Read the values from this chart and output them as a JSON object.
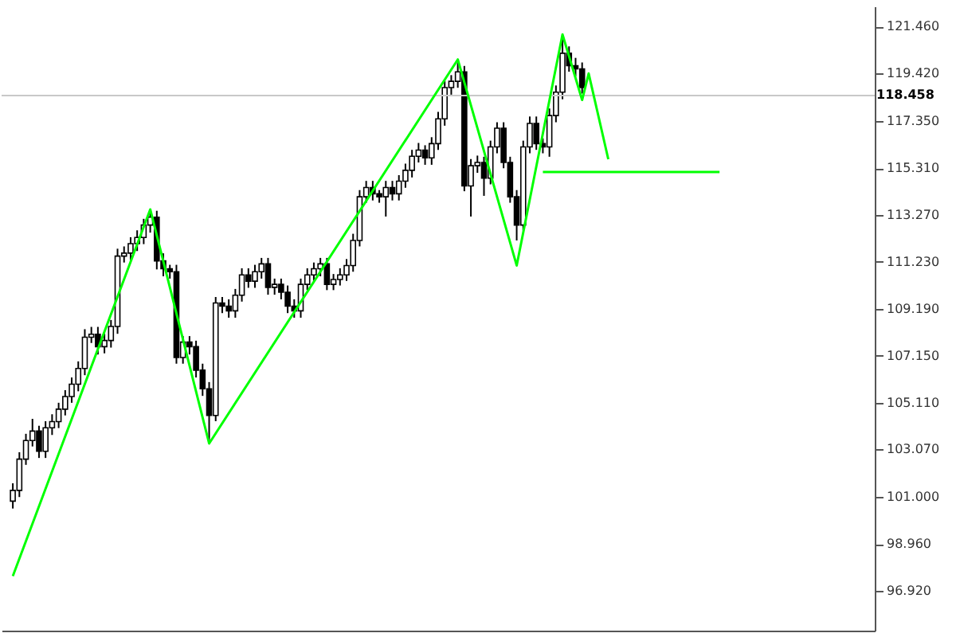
{
  "chart_data": {
    "type": "candlestick",
    "categories": [
      null,
      null,
      null,
      null,
      null,
      null,
      null,
      null,
      null,
      null,
      null,
      null,
      null,
      null,
      null,
      null,
      null,
      null,
      null,
      null,
      null,
      null,
      null,
      null,
      null,
      null,
      null,
      null,
      null,
      null,
      null,
      null,
      null,
      null,
      null,
      null,
      null,
      null,
      null,
      null,
      null,
      null,
      null,
      null,
      null,
      null,
      null,
      null,
      null,
      null,
      null,
      null,
      null,
      null,
      null,
      null,
      null,
      null,
      null,
      null,
      null,
      null,
      null,
      null,
      null,
      null,
      null,
      null,
      null,
      null,
      null,
      null,
      null,
      null,
      null,
      null,
      null,
      null,
      null,
      null,
      null,
      null,
      null,
      null,
      null,
      null,
      null,
      null,
      null,
      null,
      null,
      null,
      null,
      null,
      null,
      null,
      null,
      null,
      null,
      null,
      null,
      null,
      null,
      null,
      null,
      null,
      null,
      null,
      null,
      null,
      null,
      null,
      null,
      null,
      null,
      null,
      null,
      null,
      null,
      null,
      null,
      null,
      null,
      null,
      null,
      null,
      null,
      null,
      null,
      null,
      null
    ],
    "ohlc": [
      [
        100.82,
        101.6,
        100.5,
        101.29
      ],
      [
        101.29,
        102.95,
        101.0,
        102.65
      ],
      [
        102.65,
        103.75,
        102.4,
        103.46
      ],
      [
        103.46,
        104.4,
        103.2,
        103.87
      ],
      [
        103.87,
        104.1,
        102.7,
        102.99
      ],
      [
        102.99,
        104.3,
        102.7,
        104.01
      ],
      [
        104.01,
        104.6,
        103.7,
        104.28
      ],
      [
        104.28,
        105.1,
        104.0,
        104.82
      ],
      [
        104.82,
        105.65,
        104.55,
        105.37
      ],
      [
        105.37,
        106.2,
        105.1,
        105.91
      ],
      [
        105.91,
        106.9,
        105.6,
        106.59
      ],
      [
        106.59,
        108.3,
        106.3,
        107.95
      ],
      [
        107.95,
        108.4,
        107.7,
        108.08
      ],
      [
        108.08,
        108.4,
        107.2,
        107.54
      ],
      [
        107.54,
        108.1,
        107.25,
        107.81
      ],
      [
        107.81,
        108.7,
        107.5,
        108.42
      ],
      [
        108.42,
        111.8,
        108.1,
        111.48
      ],
      [
        111.48,
        111.9,
        111.2,
        111.61
      ],
      [
        111.61,
        112.3,
        111.3,
        112.02
      ],
      [
        112.02,
        112.6,
        111.7,
        112.29
      ],
      [
        112.29,
        113.1,
        112.0,
        112.83
      ],
      [
        112.83,
        113.45,
        112.5,
        113.17
      ],
      [
        113.17,
        113.45,
        110.9,
        111.27
      ],
      [
        111.27,
        111.6,
        110.6,
        110.93
      ],
      [
        110.93,
        111.1,
        110.5,
        110.8
      ],
      [
        110.8,
        111.1,
        106.8,
        107.07
      ],
      [
        107.07,
        108.0,
        106.8,
        107.74
      ],
      [
        107.74,
        108.0,
        107.2,
        107.54
      ],
      [
        107.54,
        107.8,
        106.2,
        106.52
      ],
      [
        106.52,
        106.8,
        105.4,
        105.71
      ],
      [
        105.71,
        106.0,
        103.46,
        104.55
      ],
      [
        104.55,
        109.7,
        104.3,
        109.44
      ],
      [
        109.44,
        109.7,
        109.0,
        109.3
      ],
      [
        109.3,
        109.6,
        108.8,
        109.1
      ],
      [
        109.1,
        110.05,
        108.8,
        109.78
      ],
      [
        109.78,
        110.95,
        109.5,
        110.66
      ],
      [
        110.66,
        110.95,
        110.1,
        110.39
      ],
      [
        110.39,
        111.1,
        110.1,
        110.8
      ],
      [
        110.8,
        111.4,
        110.5,
        111.14
      ],
      [
        111.14,
        111.4,
        109.8,
        110.12
      ],
      [
        110.12,
        110.5,
        109.8,
        110.25
      ],
      [
        110.25,
        110.5,
        109.6,
        109.91
      ],
      [
        109.91,
        110.2,
        109.0,
        109.3
      ],
      [
        109.3,
        109.6,
        108.8,
        109.1
      ],
      [
        109.1,
        110.5,
        108.8,
        110.25
      ],
      [
        110.25,
        110.95,
        110.0,
        110.66
      ],
      [
        110.66,
        111.2,
        110.4,
        110.93
      ],
      [
        110.93,
        111.4,
        110.6,
        111.14
      ],
      [
        111.14,
        111.4,
        110.0,
        110.25
      ],
      [
        110.25,
        110.7,
        110.0,
        110.46
      ],
      [
        110.46,
        110.95,
        110.2,
        110.66
      ],
      [
        110.66,
        111.35,
        110.4,
        111.07
      ],
      [
        111.07,
        112.45,
        110.8,
        112.16
      ],
      [
        112.16,
        114.35,
        111.9,
        114.06
      ],
      [
        114.06,
        114.75,
        113.8,
        114.46
      ],
      [
        114.46,
        114.75,
        113.9,
        114.19
      ],
      [
        114.19,
        114.35,
        113.8,
        114.06
      ],
      [
        114.06,
        114.75,
        113.2,
        114.46
      ],
      [
        114.46,
        114.75,
        113.9,
        114.19
      ],
      [
        114.19,
        115.0,
        113.9,
        114.74
      ],
      [
        114.74,
        115.5,
        114.45,
        115.21
      ],
      [
        115.21,
        116.1,
        114.9,
        115.82
      ],
      [
        115.82,
        116.4,
        115.55,
        116.09
      ],
      [
        116.09,
        116.3,
        115.45,
        115.75
      ],
      [
        115.75,
        116.65,
        115.45,
        116.37
      ],
      [
        116.37,
        117.75,
        116.1,
        117.45
      ],
      [
        117.45,
        119.1,
        117.15,
        118.81
      ],
      [
        118.81,
        119.35,
        118.5,
        119.08
      ],
      [
        119.08,
        119.9,
        118.8,
        119.49
      ],
      [
        119.49,
        119.75,
        114.3,
        114.53
      ],
      [
        114.53,
        115.7,
        113.2,
        115.41
      ],
      [
        115.41,
        115.85,
        115.1,
        115.55
      ],
      [
        115.55,
        115.8,
        114.1,
        114.87
      ],
      [
        114.87,
        116.5,
        114.6,
        116.23
      ],
      [
        116.23,
        117.3,
        115.95,
        117.04
      ],
      [
        117.04,
        117.3,
        115.3,
        115.55
      ],
      [
        115.55,
        115.8,
        113.8,
        114.06
      ],
      [
        114.06,
        114.35,
        112.16,
        112.83
      ],
      [
        112.83,
        116.5,
        112.6,
        116.23
      ],
      [
        116.23,
        117.55,
        115.95,
        117.25
      ],
      [
        117.25,
        117.55,
        116.1,
        116.37
      ],
      [
        116.37,
        116.6,
        115.95,
        116.23
      ],
      [
        116.23,
        117.9,
        115.8,
        117.59
      ],
      [
        117.59,
        118.9,
        117.3,
        118.61
      ],
      [
        118.61,
        120.98,
        118.3,
        120.3
      ],
      [
        120.3,
        120.6,
        119.5,
        119.76
      ],
      [
        119.76,
        120.1,
        119.3,
        119.62
      ],
      [
        119.62,
        119.9,
        118.55,
        118.81
      ],
      null,
      null,
      null,
      null,
      null,
      null,
      null,
      null,
      null,
      null,
      null,
      null,
      null,
      null,
      null,
      null,
      null,
      null,
      null,
      null,
      null,
      null,
      null,
      null,
      null,
      null,
      null,
      null,
      null,
      null,
      null,
      null,
      null,
      null,
      null,
      null,
      null,
      null,
      null,
      null,
      null,
      null,
      null
    ],
    "series": [
      {
        "type": "line",
        "color": "#00ff00",
        "values": [
          97.56,
          null,
          null,
          null,
          null,
          null,
          null,
          null,
          null,
          null,
          null,
          null,
          null,
          null,
          null,
          null,
          null,
          null,
          null,
          null,
          null,
          113.51,
          null,
          null,
          null,
          null,
          null,
          null,
          null,
          null,
          103.33,
          null,
          null,
          null,
          null,
          null,
          null,
          null,
          null,
          null,
          null,
          null,
          null,
          null,
          null,
          null,
          null,
          null,
          null,
          null,
          null,
          null,
          null,
          null,
          null,
          null,
          null,
          null,
          null,
          null,
          null,
          null,
          null,
          null,
          null,
          null,
          null,
          null,
          120.03,
          null,
          null,
          null,
          null,
          null,
          null,
          null,
          null,
          111.07,
          null,
          null,
          null,
          null,
          null,
          null,
          121.12,
          null,
          null,
          118.27,
          119.42,
          null,
          null,
          115.69,
          null,
          null,
          null,
          null,
          null,
          null,
          null,
          null,
          null,
          null,
          null,
          null,
          null,
          null,
          null,
          null,
          null,
          null,
          null,
          null,
          null,
          null,
          null,
          null,
          null,
          null,
          null,
          null,
          null,
          null,
          null,
          null,
          null,
          null,
          null,
          null,
          null,
          null,
          null
        ]
      },
      {
        "type": "line",
        "color": "#00ff00",
        "values": [
          null,
          null,
          null,
          null,
          null,
          null,
          null,
          null,
          null,
          null,
          null,
          null,
          null,
          null,
          null,
          null,
          null,
          null,
          null,
          null,
          null,
          null,
          null,
          null,
          null,
          null,
          null,
          null,
          null,
          null,
          null,
          null,
          null,
          null,
          null,
          null,
          null,
          null,
          null,
          null,
          null,
          null,
          null,
          null,
          null,
          null,
          null,
          null,
          null,
          null,
          null,
          null,
          null,
          null,
          null,
          null,
          null,
          null,
          null,
          null,
          null,
          null,
          null,
          null,
          null,
          null,
          null,
          null,
          null,
          null,
          null,
          null,
          null,
          null,
          null,
          null,
          null,
          null,
          null,
          null,
          null,
          115.14,
          null,
          null,
          null,
          null,
          null,
          null,
          null,
          null,
          null,
          null,
          null,
          null,
          null,
          null,
          null,
          null,
          null,
          null,
          null,
          null,
          null,
          null,
          null,
          null,
          null,
          null,
          115.14,
          null,
          null,
          null,
          null,
          null,
          null,
          null,
          null,
          null,
          null,
          null,
          null,
          null,
          null,
          null,
          null,
          null,
          null,
          null,
          null,
          null,
          null
        ]
      }
    ],
    "ylim": [
      95.19,
      122.34
    ],
    "yticks": [
      {
        "value": 96.92,
        "label": "96.920"
      },
      {
        "value": 98.96,
        "label": "98.960"
      },
      {
        "value": 101.0,
        "label": "101.000"
      },
      {
        "value": 103.07,
        "label": "103.070"
      },
      {
        "value": 105.11,
        "label": "105.110"
      },
      {
        "value": 107.15,
        "label": "107.150"
      },
      {
        "value": 109.19,
        "label": "109.190"
      },
      {
        "value": 111.23,
        "label": "111.230"
      },
      {
        "value": 113.27,
        "label": "113.270"
      },
      {
        "value": 115.31,
        "label": "115.310"
      },
      {
        "value": 117.35,
        "label": "117.350"
      },
      {
        "value": 119.42,
        "label": "119.420"
      },
      {
        "value": 121.46,
        "label": "121.460"
      }
    ],
    "ref_lines": [
      {
        "axis": "y",
        "value": 118.458,
        "label": "118.458",
        "color": "#c8c8c8"
      }
    ],
    "tick_labels": "y",
    "grid": false
  }
}
